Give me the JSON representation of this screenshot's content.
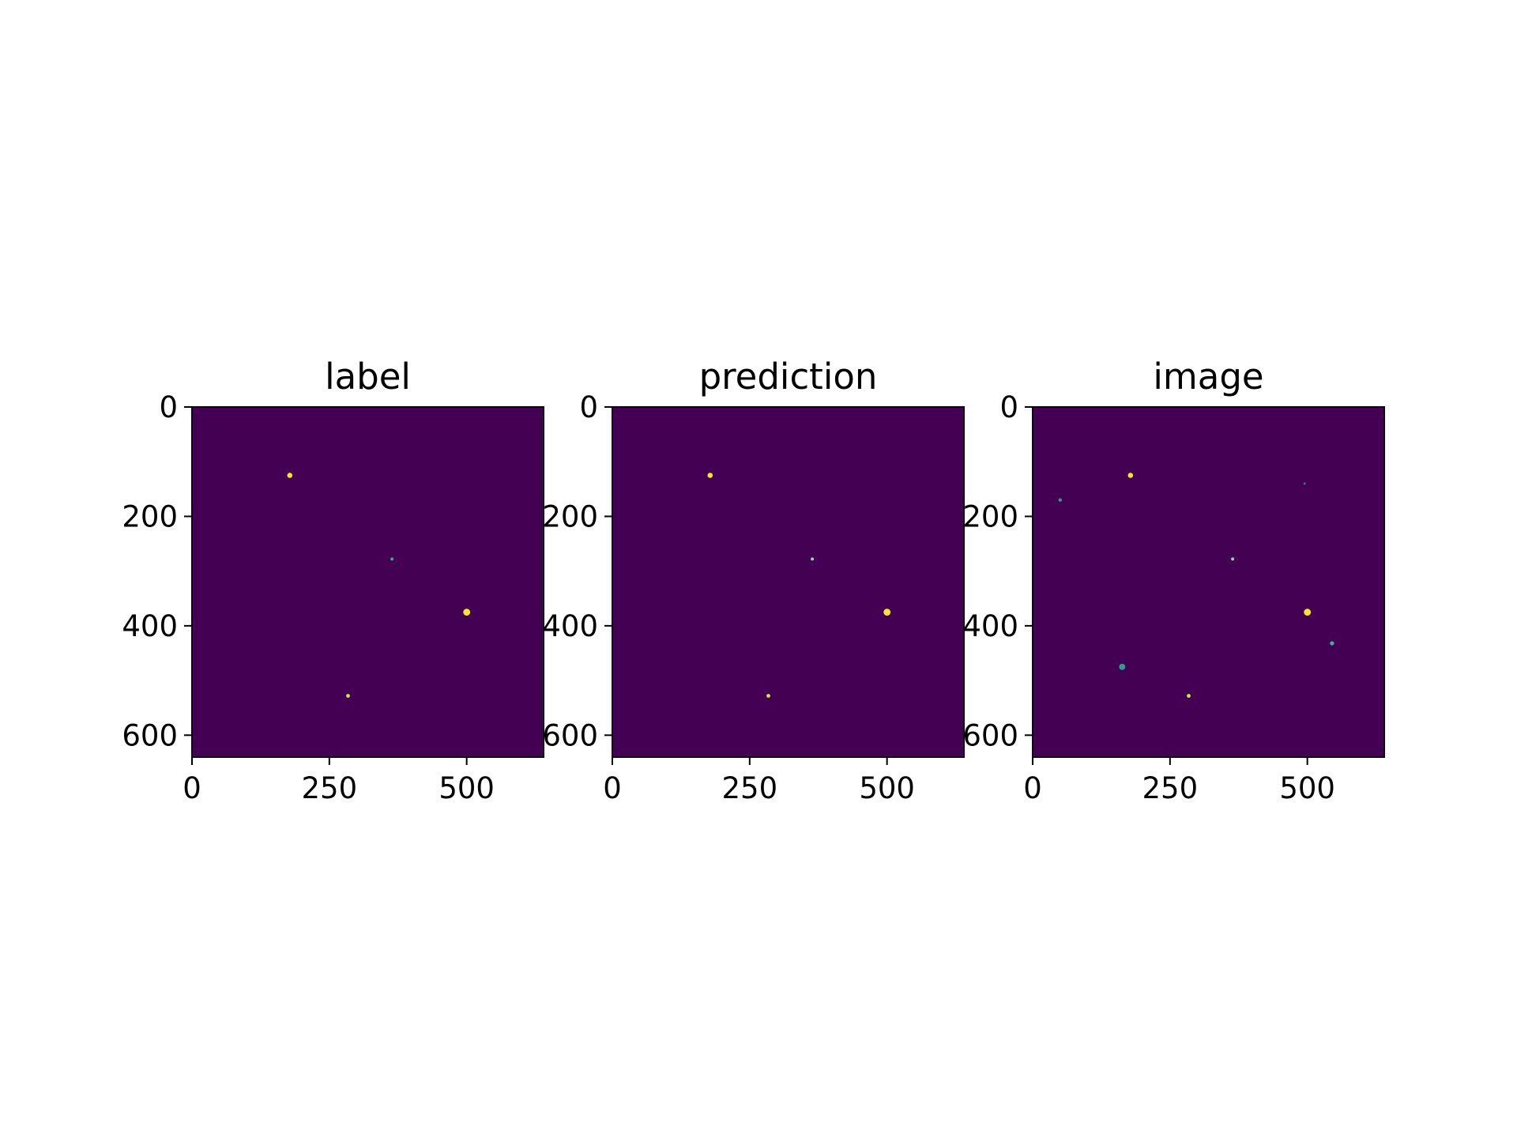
{
  "chart_data": [
    {
      "type": "heatmap",
      "title": "label",
      "xlim": [
        0,
        640
      ],
      "ylim": [
        640,
        0
      ],
      "xticks": [
        0,
        250,
        500
      ],
      "yticks": [
        0,
        200,
        400,
        600
      ],
      "background_color": "#440154",
      "grid": false,
      "points": [
        {
          "x": 178,
          "y": 125,
          "size": 1.5,
          "color": "#fde725"
        },
        {
          "x": 364,
          "y": 278,
          "size": 0.9,
          "color": "#4aa58f"
        },
        {
          "x": 500,
          "y": 375,
          "size": 2.0,
          "color": "#fde725"
        },
        {
          "x": 284,
          "y": 528,
          "size": 1.1,
          "color": "#cfe64a"
        }
      ]
    },
    {
      "type": "heatmap",
      "title": "prediction",
      "xlim": [
        0,
        640
      ],
      "ylim": [
        640,
        0
      ],
      "xticks": [
        0,
        250,
        500
      ],
      "yticks": [
        0,
        200,
        400,
        600
      ],
      "background_color": "#440154",
      "grid": false,
      "points": [
        {
          "x": 178,
          "y": 125,
          "size": 1.5,
          "color": "#fde725"
        },
        {
          "x": 364,
          "y": 278,
          "size": 0.9,
          "color": "#9ad3b4"
        },
        {
          "x": 500,
          "y": 375,
          "size": 2.0,
          "color": "#fde725"
        },
        {
          "x": 284,
          "y": 528,
          "size": 1.1,
          "color": "#cfe64a"
        }
      ]
    },
    {
      "type": "heatmap",
      "title": "image",
      "xlim": [
        0,
        640
      ],
      "ylim": [
        640,
        0
      ],
      "xticks": [
        0,
        250,
        500
      ],
      "yticks": [
        0,
        200,
        400,
        600
      ],
      "background_color": "#440154",
      "grid": false,
      "points": [
        {
          "x": 50,
          "y": 170,
          "size": 1.0,
          "color": "#2a9d8f"
        },
        {
          "x": 178,
          "y": 125,
          "size": 1.5,
          "color": "#fde725"
        },
        {
          "x": 495,
          "y": 140,
          "size": 0.7,
          "color": "#3b6a8a"
        },
        {
          "x": 364,
          "y": 278,
          "size": 0.9,
          "color": "#9ad3b4"
        },
        {
          "x": 500,
          "y": 375,
          "size": 2.0,
          "color": "#fde725"
        },
        {
          "x": 545,
          "y": 432,
          "size": 1.2,
          "color": "#35b79d"
        },
        {
          "x": 163,
          "y": 475,
          "size": 1.8,
          "color": "#2a9d8f"
        },
        {
          "x": 284,
          "y": 528,
          "size": 1.1,
          "color": "#cfe64a"
        }
      ]
    }
  ]
}
